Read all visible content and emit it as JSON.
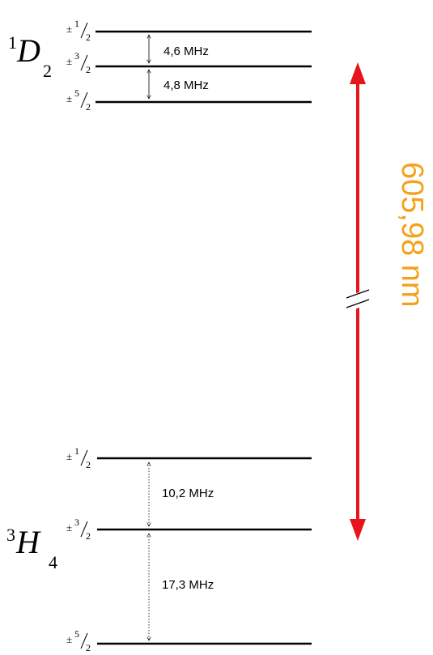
{
  "upper_state": {
    "term_sup": "1",
    "term_letter": "D",
    "term_sub": "2",
    "levels": [
      {
        "sign": "±",
        "num": "1",
        "den": "2"
      },
      {
        "sign": "±",
        "num": "3",
        "den": "2"
      },
      {
        "sign": "±",
        "num": "5",
        "den": "2"
      }
    ],
    "splittings": [
      "4,6 MHz",
      "4,8 MHz"
    ]
  },
  "lower_state": {
    "term_sup": "3",
    "term_letter": "H",
    "term_sub": "4",
    "levels": [
      {
        "sign": "±",
        "num": "1",
        "den": "2"
      },
      {
        "sign": "±",
        "num": "3",
        "den": "2"
      },
      {
        "sign": "±",
        "num": "5",
        "den": "2"
      }
    ],
    "splittings": [
      "10,2 MHz",
      "17,3 MHz"
    ]
  },
  "transition": {
    "wavelength_label": "605,98 nm",
    "arrow_color": "#e8141b",
    "label_color": "#f5a11a"
  }
}
